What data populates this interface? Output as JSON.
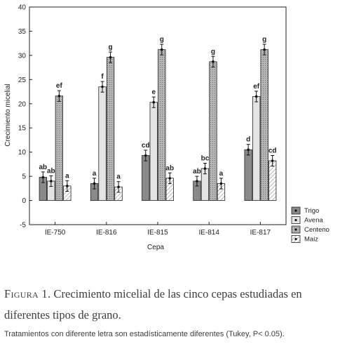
{
  "chart_data": {
    "type": "bar",
    "xlabel": "Cepa",
    "ylabel": "Crecimiento micelial",
    "ylim": [
      -5,
      40
    ],
    "yticks": [
      -5,
      0,
      5,
      10,
      15,
      20,
      25,
      30,
      35,
      40
    ],
    "grid": false,
    "legend_position": "bottom-right",
    "categories": [
      "IE-750",
      "IE-816",
      "IE-815",
      "IE-814",
      "IE-817"
    ],
    "series": [
      {
        "name": "Trigo",
        "color": "#8a8a8a",
        "values": [
          4.8,
          3.5,
          9.3,
          4.0,
          10.5
        ],
        "errors": [
          1.1,
          1.1,
          1.1,
          1.0,
          1.1
        ],
        "labels": [
          "ab",
          "a",
          "cd",
          "ab",
          "d"
        ]
      },
      {
        "name": "Avena",
        "color": "#e2e2e2",
        "values": [
          4.0,
          23.5,
          20.3,
          6.6,
          21.5
        ],
        "errors": [
          1.1,
          1.1,
          1.1,
          1.1,
          1.1
        ],
        "labels": [
          "ab",
          "f",
          "e",
          "bc",
          "ef"
        ]
      },
      {
        "name": "Centeno",
        "color": "#a8a8a8",
        "values": [
          21.6,
          29.6,
          31.2,
          28.7,
          31.2
        ],
        "errors": [
          1.1,
          1.1,
          1.1,
          1.1,
          1.1
        ],
        "labels": [
          "ef",
          "g",
          "g",
          "g",
          "g"
        ]
      },
      {
        "name": "Maiz",
        "color": "#ffffff",
        "values": [
          3.0,
          2.8,
          4.6,
          3.5,
          8.2
        ],
        "errors": [
          1.1,
          1.1,
          1.1,
          1.1,
          1.1
        ],
        "labels": [
          "a",
          "a",
          "ab",
          "a",
          "cd"
        ]
      }
    ]
  },
  "caption": {
    "figure_label": "Figura 1.",
    "title": "Crecimiento micelial de las cinco cepas estudiadas en diferentes tipos de grano.",
    "note": "Tratamientos con diferente letra son estadísticamente diferentes (Tukey, P< 0.05)."
  }
}
